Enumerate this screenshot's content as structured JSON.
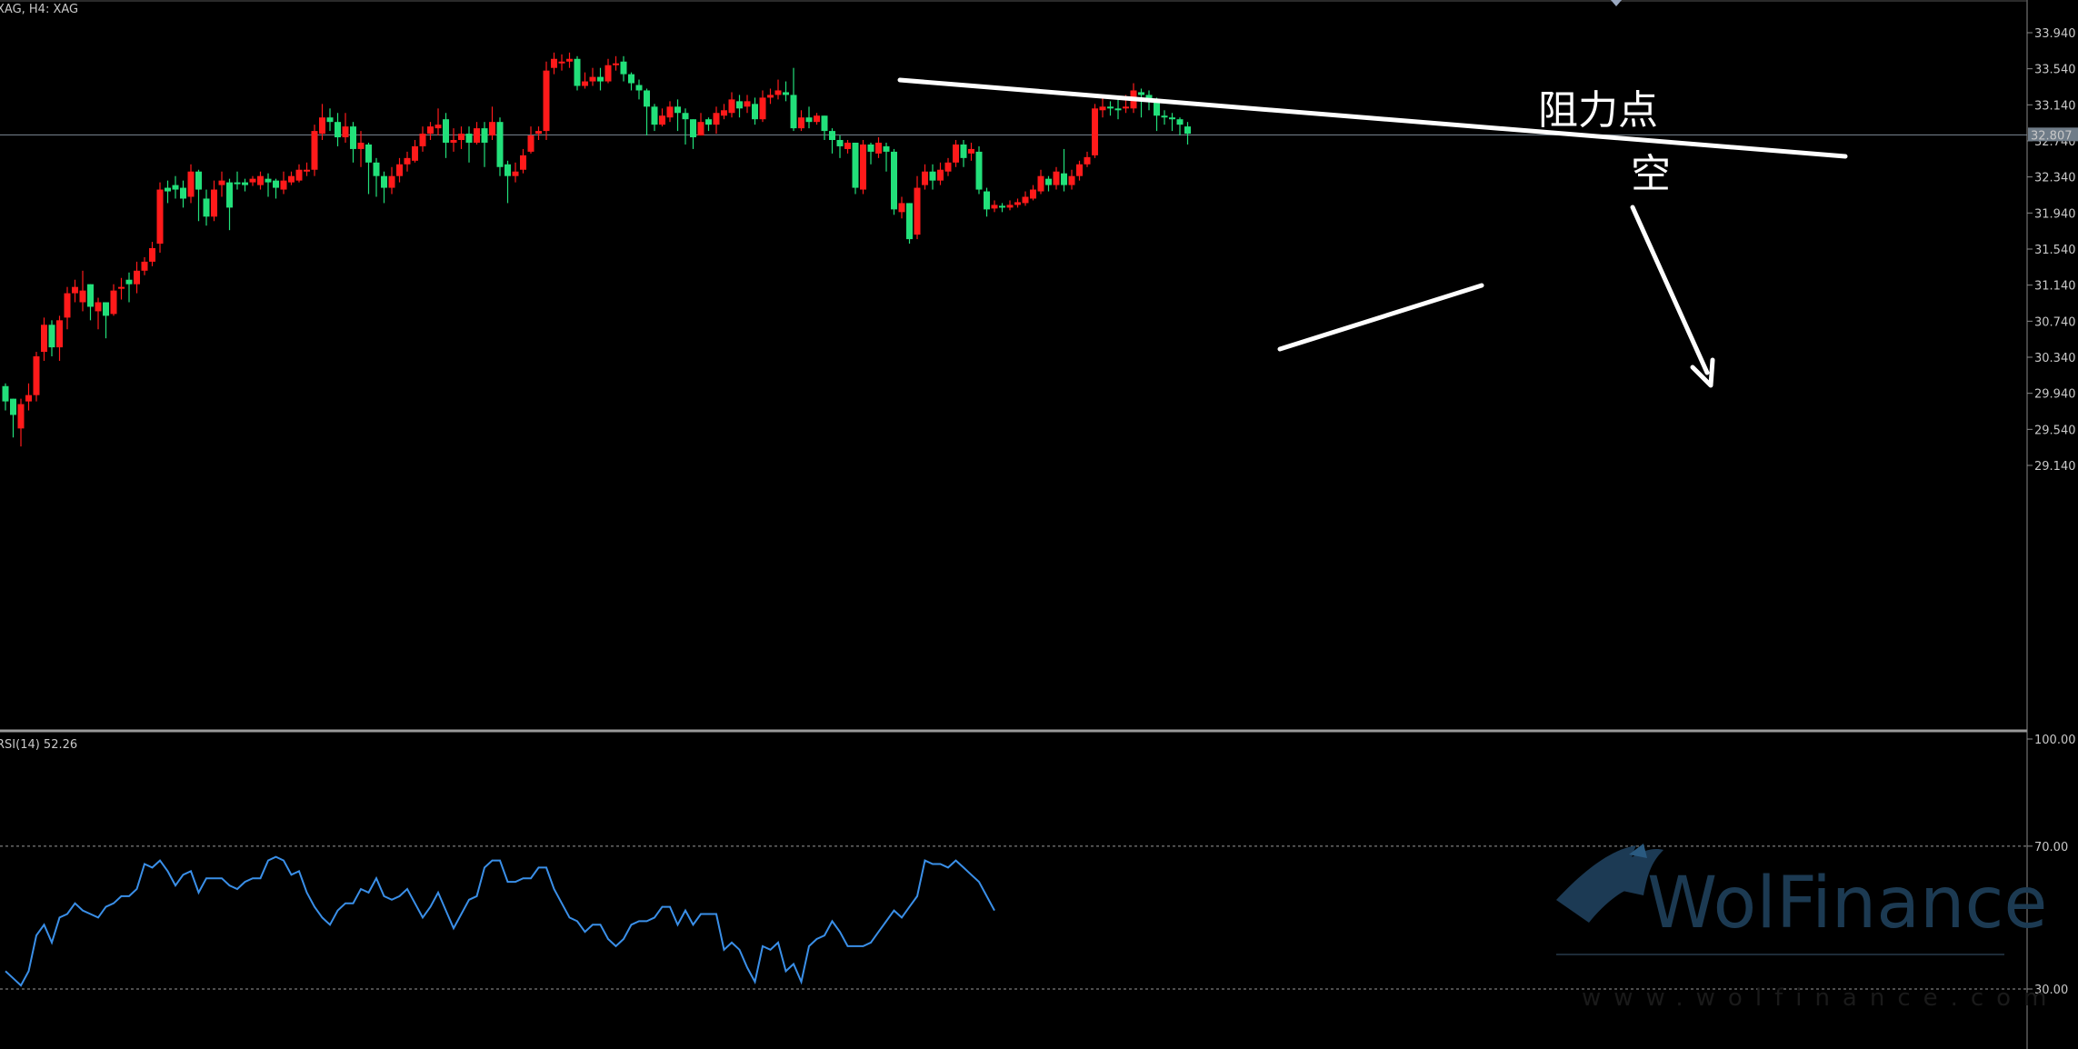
{
  "header": {
    "symbol_label": "XAG, H4:  XAG"
  },
  "rsi_panel": {
    "label": "RSI(14) 52.26",
    "levels": [
      100,
      70,
      30
    ]
  },
  "current_price": 32.807,
  "annotations": {
    "resistance": "阻力点",
    "short": "空"
  },
  "watermark": {
    "brand": "WolFinance",
    "url": "www.wolfinance.com"
  },
  "colors": {
    "bull": "#22e07a",
    "bear": "#ff1a1a",
    "rsi": "#3a8fe8",
    "background": "#000000",
    "lines": "#ffffff"
  },
  "chart_data": [
    {
      "type": "candlestick",
      "title": "XAG, H4:  XAG",
      "ylim": [
        28.9,
        34.1
      ],
      "y_ticks": [
        "33.940",
        "33.540",
        "33.140",
        "32.740",
        "32.340",
        "31.940",
        "31.540",
        "31.140",
        "30.740",
        "30.340",
        "29.940",
        "29.540",
        "29.140"
      ],
      "candles": [
        [
          29.85,
          30.05,
          29.75,
          30.02
        ],
        [
          29.7,
          29.88,
          29.45,
          29.88
        ],
        [
          29.82,
          29.88,
          29.35,
          29.55
        ],
        [
          29.92,
          30.05,
          29.75,
          29.85
        ],
        [
          30.35,
          30.4,
          29.85,
          29.92
        ],
        [
          30.7,
          30.78,
          30.3,
          30.4
        ],
        [
          30.45,
          30.75,
          30.35,
          30.7
        ],
        [
          30.75,
          30.8,
          30.3,
          30.45
        ],
        [
          31.05,
          31.12,
          30.65,
          30.78
        ],
        [
          31.12,
          31.2,
          30.95,
          31.05
        ],
        [
          31.08,
          31.3,
          30.85,
          30.95
        ],
        [
          30.9,
          31.15,
          30.75,
          31.15
        ],
        [
          30.95,
          31.0,
          30.65,
          30.85
        ],
        [
          30.8,
          30.95,
          30.55,
          30.95
        ],
        [
          31.08,
          31.15,
          30.8,
          30.82
        ],
        [
          31.12,
          31.22,
          30.98,
          31.1
        ],
        [
          31.15,
          31.28,
          30.95,
          31.2
        ],
        [
          31.3,
          31.4,
          31.05,
          31.15
        ],
        [
          31.4,
          31.45,
          31.25,
          31.3
        ],
        [
          31.55,
          31.62,
          31.35,
          31.4
        ],
        [
          32.2,
          32.28,
          31.5,
          31.6
        ],
        [
          32.18,
          32.3,
          32.05,
          32.22
        ],
        [
          32.2,
          32.35,
          32.1,
          32.25
        ],
        [
          32.1,
          32.3,
          32.0,
          32.22
        ],
        [
          32.4,
          32.48,
          32.05,
          32.12
        ],
        [
          32.2,
          32.42,
          31.85,
          32.4
        ],
        [
          31.9,
          32.2,
          31.8,
          32.1
        ],
        [
          32.2,
          32.3,
          31.85,
          31.9
        ],
        [
          32.3,
          32.4,
          32.12,
          32.25
        ],
        [
          32.0,
          32.32,
          31.75,
          32.28
        ],
        [
          32.28,
          32.4,
          32.2,
          32.28
        ],
        [
          32.25,
          32.32,
          32.18,
          32.28
        ],
        [
          32.32,
          32.35,
          32.24,
          32.28
        ],
        [
          32.35,
          32.4,
          32.2,
          32.25
        ],
        [
          32.28,
          32.38,
          32.12,
          32.32
        ],
        [
          32.22,
          32.32,
          32.1,
          32.3
        ],
        [
          32.3,
          32.4,
          32.15,
          32.2
        ],
        [
          32.35,
          32.4,
          32.25,
          32.28
        ],
        [
          32.42,
          32.48,
          32.28,
          32.3
        ],
        [
          32.42,
          32.5,
          32.35,
          32.4
        ],
        [
          32.85,
          32.92,
          32.35,
          32.42
        ],
        [
          33.0,
          33.15,
          32.75,
          32.82
        ],
        [
          32.95,
          33.1,
          32.85,
          33.0
        ],
        [
          32.78,
          33.05,
          32.68,
          32.95
        ],
        [
          32.9,
          33.05,
          32.72,
          32.78
        ],
        [
          32.65,
          32.95,
          32.5,
          32.9
        ],
        [
          32.72,
          32.85,
          32.45,
          32.65
        ],
        [
          32.5,
          32.72,
          32.15,
          32.7
        ],
        [
          32.35,
          32.55,
          32.12,
          32.5
        ],
        [
          32.22,
          32.4,
          32.05,
          32.35
        ],
        [
          32.35,
          32.45,
          32.15,
          32.22
        ],
        [
          32.48,
          32.55,
          32.28,
          32.35
        ],
        [
          32.55,
          32.62,
          32.4,
          32.48
        ],
        [
          32.68,
          32.75,
          32.5,
          32.52
        ],
        [
          32.82,
          32.9,
          32.62,
          32.68
        ],
        [
          32.9,
          32.95,
          32.75,
          32.82
        ],
        [
          32.92,
          33.1,
          32.8,
          32.88
        ],
        [
          32.72,
          33.05,
          32.55,
          32.98
        ],
        [
          32.75,
          32.88,
          32.62,
          32.72
        ],
        [
          32.82,
          32.9,
          32.65,
          32.75
        ],
        [
          32.72,
          32.9,
          32.5,
          32.82
        ],
        [
          32.88,
          32.95,
          32.7,
          32.72
        ],
        [
          32.72,
          32.95,
          32.45,
          32.88
        ],
        [
          32.95,
          33.12,
          32.75,
          32.8
        ],
        [
          32.45,
          33.0,
          32.35,
          32.95
        ],
        [
          32.35,
          32.52,
          32.05,
          32.48
        ],
        [
          32.4,
          32.5,
          32.28,
          32.35
        ],
        [
          32.58,
          32.65,
          32.38,
          32.42
        ],
        [
          32.8,
          32.9,
          32.6,
          32.62
        ],
        [
          32.85,
          32.9,
          32.75,
          32.82
        ],
        [
          33.52,
          33.62,
          32.75,
          32.85
        ],
        [
          33.65,
          33.72,
          33.48,
          33.55
        ],
        [
          33.62,
          33.7,
          33.52,
          33.6
        ],
        [
          33.65,
          33.72,
          33.55,
          33.62
        ],
        [
          33.35,
          33.68,
          33.3,
          33.65
        ],
        [
          33.4,
          33.5,
          33.32,
          33.35
        ],
        [
          33.45,
          33.55,
          33.35,
          33.4
        ],
        [
          33.4,
          33.55,
          33.3,
          33.45
        ],
        [
          33.58,
          33.65,
          33.38,
          33.4
        ],
        [
          33.6,
          33.68,
          33.52,
          33.58
        ],
        [
          33.48,
          33.68,
          33.4,
          33.62
        ],
        [
          33.38,
          33.5,
          33.3,
          33.48
        ],
        [
          33.3,
          33.42,
          33.2,
          33.36
        ],
        [
          33.12,
          33.32,
          32.8,
          33.3
        ],
        [
          32.92,
          33.15,
          32.85,
          33.12
        ],
        [
          33.02,
          33.1,
          32.9,
          32.92
        ],
        [
          33.12,
          33.18,
          32.95,
          33.0
        ],
        [
          33.05,
          33.2,
          32.85,
          33.12
        ],
        [
          32.98,
          33.1,
          32.7,
          33.05
        ],
        [
          32.78,
          32.98,
          32.65,
          32.98
        ],
        [
          32.95,
          33.05,
          32.8,
          32.8
        ],
        [
          32.92,
          33.0,
          32.85,
          32.98
        ],
        [
          33.05,
          33.12,
          32.82,
          32.92
        ],
        [
          33.08,
          33.15,
          32.98,
          33.02
        ],
        [
          33.2,
          33.28,
          33.0,
          33.05
        ],
        [
          33.1,
          33.25,
          33.0,
          33.18
        ],
        [
          33.18,
          33.25,
          33.05,
          33.12
        ],
        [
          32.98,
          33.22,
          32.92,
          33.15
        ],
        [
          33.22,
          33.3,
          32.95,
          32.98
        ],
        [
          33.25,
          33.32,
          33.15,
          33.22
        ],
        [
          33.3,
          33.42,
          33.2,
          33.25
        ],
        [
          33.25,
          33.4,
          33.18,
          33.28
        ],
        [
          32.88,
          33.55,
          32.85,
          33.25
        ],
        [
          33.0,
          33.08,
          32.85,
          32.88
        ],
        [
          32.95,
          33.12,
          32.88,
          33.0
        ],
        [
          33.02,
          33.05,
          32.92,
          32.95
        ],
        [
          32.85,
          33.02,
          32.75,
          33.02
        ],
        [
          32.75,
          32.88,
          32.6,
          32.85
        ],
        [
          32.68,
          32.8,
          32.55,
          32.75
        ],
        [
          32.72,
          32.75,
          32.6,
          32.65
        ],
        [
          32.22,
          32.72,
          32.15,
          32.72
        ],
        [
          32.7,
          32.75,
          32.15,
          32.2
        ],
        [
          32.62,
          32.72,
          32.48,
          32.7
        ],
        [
          32.72,
          32.78,
          32.55,
          32.6
        ],
        [
          32.62,
          32.72,
          32.4,
          32.68
        ],
        [
          31.98,
          32.65,
          31.92,
          32.62
        ],
        [
          32.05,
          32.12,
          31.88,
          31.95
        ],
        [
          31.65,
          32.05,
          31.6,
          32.05
        ],
        [
          32.22,
          32.35,
          31.65,
          31.7
        ],
        [
          32.4,
          32.48,
          32.2,
          32.25
        ],
        [
          32.3,
          32.48,
          32.2,
          32.4
        ],
        [
          32.42,
          32.5,
          32.25,
          32.3
        ],
        [
          32.5,
          32.55,
          32.35,
          32.4
        ],
        [
          32.7,
          32.75,
          32.45,
          32.5
        ],
        [
          32.55,
          32.75,
          32.45,
          32.7
        ],
        [
          32.65,
          32.72,
          32.52,
          32.6
        ],
        [
          32.2,
          32.68,
          32.15,
          32.62
        ],
        [
          31.98,
          32.22,
          31.9,
          32.18
        ],
        [
          32.03,
          32.08,
          31.95,
          31.99
        ],
        [
          32.0,
          32.05,
          31.95,
          32.02
        ],
        [
          32.03,
          32.08,
          31.97,
          32.0
        ],
        [
          32.06,
          32.1,
          32.0,
          32.03
        ],
        [
          32.12,
          32.18,
          32.02,
          32.05
        ],
        [
          32.2,
          32.25,
          32.08,
          32.1
        ],
        [
          32.35,
          32.42,
          32.15,
          32.18
        ],
        [
          32.25,
          32.35,
          32.18,
          32.32
        ],
        [
          32.4,
          32.45,
          32.2,
          32.25
        ],
        [
          32.25,
          32.65,
          32.18,
          32.38
        ],
        [
          32.35,
          32.42,
          32.2,
          32.25
        ],
        [
          32.48,
          32.52,
          32.3,
          32.35
        ],
        [
          32.56,
          32.62,
          32.45,
          32.48
        ],
        [
          33.1,
          33.15,
          32.55,
          32.58
        ],
        [
          33.12,
          33.22,
          33.0,
          33.08
        ],
        [
          33.1,
          33.18,
          33.02,
          33.12
        ],
        [
          33.08,
          33.22,
          32.98,
          33.1
        ],
        [
          33.12,
          33.25,
          33.05,
          33.1
        ],
        [
          33.3,
          33.38,
          33.05,
          33.1
        ],
        [
          33.25,
          33.32,
          33.0,
          33.28
        ],
        [
          33.2,
          33.3,
          33.08,
          33.25
        ],
        [
          33.02,
          33.22,
          32.85,
          33.2
        ],
        [
          33.0,
          33.08,
          32.92,
          33.02
        ],
        [
          32.98,
          33.05,
          32.85,
          33.0
        ],
        [
          32.92,
          33.0,
          32.8,
          32.98
        ],
        [
          32.82,
          32.95,
          32.7,
          32.9
        ]
      ]
    },
    {
      "type": "line",
      "title": "RSI(14) 52.26",
      "ylim": [
        0,
        100
      ],
      "y_ticks": [
        "100.00",
        "70.00",
        "30.00"
      ],
      "series": [
        {
          "values": [
            35,
            33,
            31,
            35,
            45,
            48,
            43,
            50,
            51,
            54,
            52,
            51,
            50,
            53,
            54,
            56,
            56,
            58,
            65,
            64,
            66,
            63,
            59,
            62,
            63,
            57,
            61,
            61,
            61,
            59,
            58,
            60,
            61,
            61,
            66,
            67,
            66,
            62,
            63,
            57,
            53,
            50,
            48,
            52,
            54,
            54,
            58,
            57,
            61,
            56,
            55,
            56,
            58,
            54,
            50,
            53,
            57,
            52,
            47,
            51,
            55,
            56,
            64,
            66,
            66,
            60,
            60,
            61,
            61,
            64,
            64,
            58,
            54,
            50,
            49,
            46,
            48,
            48,
            44,
            42,
            44,
            48,
            49,
            49,
            50,
            53,
            53,
            48,
            52,
            48,
            51,
            51,
            51,
            41,
            43,
            41,
            36,
            32,
            42,
            41,
            43,
            35,
            37,
            32,
            42,
            44,
            45,
            49,
            46,
            42,
            42,
            42,
            43,
            46,
            49,
            52,
            50,
            53,
            56,
            66,
            65,
            65,
            64,
            66,
            64,
            62,
            60,
            56,
            52
          ]
        }
      ]
    }
  ]
}
